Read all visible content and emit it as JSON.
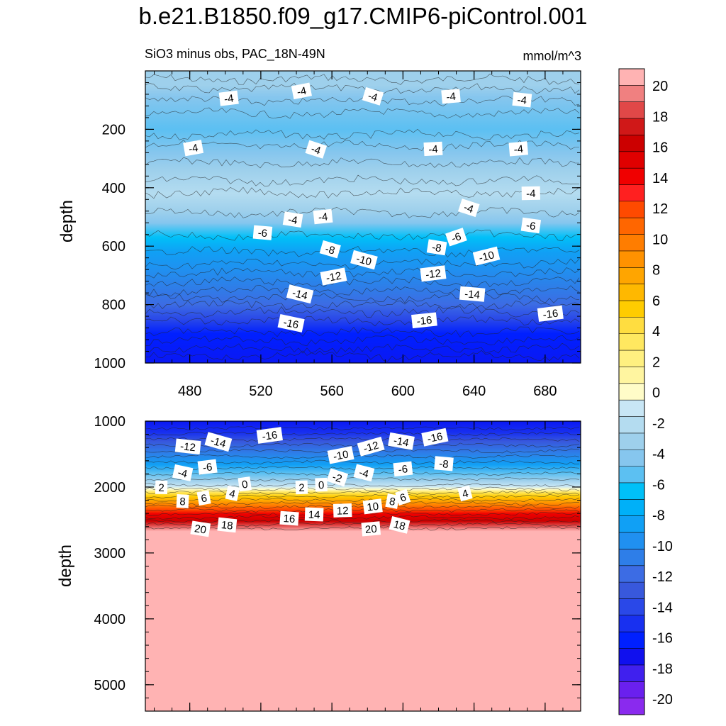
{
  "figure_title": "b.e21.B1850.f09_g17.CMIP6-piControl.001",
  "chart_data": [
    {
      "type": "contour",
      "panel": "upper",
      "subtitle_left": "SiO3 minus obs, PAC_18N-49N",
      "subtitle_right": "mmol/m^3",
      "ylabel": "depth",
      "xlabel": "",
      "xlim": [
        455,
        700
      ],
      "ylim": [
        1000,
        0
      ],
      "x_ticks": [
        480,
        520,
        560,
        600,
        640,
        680
      ],
      "x_tick_labels": [
        "480",
        "520",
        "560",
        "600",
        "640",
        "680"
      ],
      "y_ticks": [
        200,
        400,
        600,
        800,
        1000
      ],
      "y_tick_labels": [
        "200",
        "400",
        "600",
        "800",
        "1000"
      ],
      "contour_labels": [
        {
          "x": 502,
          "y": 95,
          "text": "-4"
        },
        {
          "x": 543,
          "y": 70,
          "text": "-4"
        },
        {
          "x": 583,
          "y": 88,
          "text": "-4"
        },
        {
          "x": 627,
          "y": 88,
          "text": "-4"
        },
        {
          "x": 667,
          "y": 100,
          "text": "-4"
        },
        {
          "x": 482,
          "y": 265,
          "text": "-4"
        },
        {
          "x": 551,
          "y": 270,
          "text": "-4"
        },
        {
          "x": 617,
          "y": 268,
          "text": "-4"
        },
        {
          "x": 665,
          "y": 268,
          "text": "-4"
        },
        {
          "x": 672,
          "y": 420,
          "text": "-4"
        },
        {
          "x": 637,
          "y": 470,
          "text": "-4"
        },
        {
          "x": 538,
          "y": 510,
          "text": "-4"
        },
        {
          "x": 555,
          "y": 500,
          "text": "-4"
        },
        {
          "x": 521,
          "y": 555,
          "text": "-6"
        },
        {
          "x": 672,
          "y": 530,
          "text": "-6"
        },
        {
          "x": 630,
          "y": 570,
          "text": "-6"
        },
        {
          "x": 559,
          "y": 612,
          "text": "-8"
        },
        {
          "x": 619,
          "y": 605,
          "text": "-8"
        },
        {
          "x": 578,
          "y": 648,
          "text": "-10"
        },
        {
          "x": 647,
          "y": 635,
          "text": "-10"
        },
        {
          "x": 561,
          "y": 705,
          "text": "-12"
        },
        {
          "x": 617,
          "y": 695,
          "text": "-12"
        },
        {
          "x": 542,
          "y": 765,
          "text": "-14"
        },
        {
          "x": 639,
          "y": 765,
          "text": "-14"
        },
        {
          "x": 537,
          "y": 865,
          "text": "-16"
        },
        {
          "x": 612,
          "y": 855,
          "text": "-16"
        },
        {
          "x": 683,
          "y": 832,
          "text": "-16"
        }
      ]
    },
    {
      "type": "contour",
      "panel": "lower",
      "ylabel": "depth",
      "xlabel": "",
      "xlim": [
        455,
        700
      ],
      "ylim": [
        5400,
        1000
      ],
      "y_ticks": [
        1000,
        2000,
        3000,
        4000,
        5000
      ],
      "y_tick_labels": [
        "1000",
        "2000",
        "3000",
        "4000",
        "5000"
      ],
      "contour_labels": [
        {
          "x": 479,
          "y": 1390,
          "text": "-12"
        },
        {
          "x": 496,
          "y": 1320,
          "text": "-14"
        },
        {
          "x": 525,
          "y": 1220,
          "text": "-16"
        },
        {
          "x": 582,
          "y": 1390,
          "text": "-12"
        },
        {
          "x": 565,
          "y": 1520,
          "text": "-10"
        },
        {
          "x": 599,
          "y": 1310,
          "text": "-14"
        },
        {
          "x": 618,
          "y": 1250,
          "text": "-16"
        },
        {
          "x": 490,
          "y": 1700,
          "text": "-6"
        },
        {
          "x": 476,
          "y": 1790,
          "text": "-4"
        },
        {
          "x": 600,
          "y": 1730,
          "text": "-6"
        },
        {
          "x": 623,
          "y": 1650,
          "text": "-8"
        },
        {
          "x": 578,
          "y": 1790,
          "text": "-4"
        },
        {
          "x": 563,
          "y": 1860,
          "text": "-2"
        },
        {
          "x": 464,
          "y": 2010,
          "text": "2"
        },
        {
          "x": 511,
          "y": 1960,
          "text": "0"
        },
        {
          "x": 543,
          "y": 2010,
          "text": "2"
        },
        {
          "x": 554,
          "y": 1970,
          "text": "0"
        },
        {
          "x": 476,
          "y": 2220,
          "text": "8"
        },
        {
          "x": 488,
          "y": 2170,
          "text": "6"
        },
        {
          "x": 504,
          "y": 2100,
          "text": "4"
        },
        {
          "x": 635,
          "y": 2100,
          "text": "4"
        },
        {
          "x": 594,
          "y": 2220,
          "text": "8"
        },
        {
          "x": 600,
          "y": 2160,
          "text": "6"
        },
        {
          "x": 583,
          "y": 2300,
          "text": "10"
        },
        {
          "x": 566,
          "y": 2360,
          "text": "12"
        },
        {
          "x": 550,
          "y": 2420,
          "text": "14"
        },
        {
          "x": 536,
          "y": 2480,
          "text": "16"
        },
        {
          "x": 501,
          "y": 2580,
          "text": "18"
        },
        {
          "x": 486,
          "y": 2640,
          "text": "20"
        },
        {
          "x": 582,
          "y": 2640,
          "text": "20"
        },
        {
          "x": 598,
          "y": 2580,
          "text": "18"
        }
      ]
    }
  ],
  "colorbar": {
    "labels": [
      "20",
      "18",
      "16",
      "14",
      "12",
      "10",
      "8",
      "6",
      "4",
      "2",
      "0",
      "-2",
      "-4",
      "-6",
      "-8",
      "-10",
      "-12",
      "-14",
      "-16",
      "-18",
      "-20"
    ],
    "colors_top_to_bottom": [
      "#ffb3b3",
      "#f08080",
      "#e04848",
      "#d01818",
      "#cc0000",
      "#e00000",
      "#f00000",
      "#ff2020",
      "#ff4a00",
      "#ff6600",
      "#ff7d00",
      "#ff9200",
      "#ffa500",
      "#ffb800",
      "#ffcc00",
      "#ffdd40",
      "#ffe860",
      "#fff080",
      "#fff5a0",
      "#fffcc8",
      "#c8e6f5",
      "#b4dcf0",
      "#9ed0ec",
      "#86c6ee",
      "#5cc0f2",
      "#00c0f8",
      "#00b0f8",
      "#10a0f5",
      "#2090f0",
      "#2e7ee8",
      "#3c6ce4",
      "#3858dc",
      "#2a48e8",
      "#1830f0",
      "#0020ff",
      "#1010ee",
      "#4020ee",
      "#6a20ee",
      "#8a2aee"
    ]
  }
}
